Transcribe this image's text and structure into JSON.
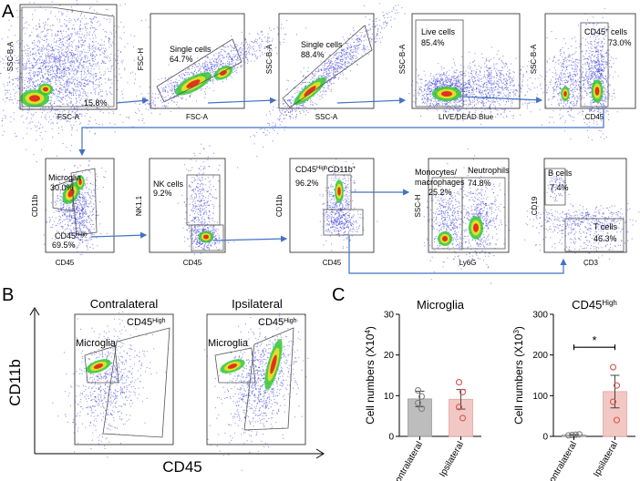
{
  "figure": {
    "panel_a": "A",
    "panel_b": "B",
    "panel_c": "C"
  },
  "colors": {
    "arrow": "#4472c4",
    "gate": "#555555",
    "contra_bar": "#bdbdbd",
    "ipsi_bar": "#f2c8c4",
    "contra_point": "#808080",
    "ipsi_point": "#d9534f",
    "density_low": "#3a3ad8",
    "density_mid": "#32c832",
    "density_high": "#e02020"
  },
  "gating_plots": [
    {
      "id": "fsc-ssc",
      "x_label": "FSC-A",
      "y_label": "SSC-B-A",
      "gates": [
        {
          "name": "",
          "pct": "15.8%"
        }
      ]
    },
    {
      "id": "singlets1",
      "x_label": "FSC-A",
      "y_label": "FSC-H",
      "gates": [
        {
          "name": "Single cells",
          "pct": "64.7%"
        }
      ]
    },
    {
      "id": "singlets2",
      "x_label": "SSC-A",
      "y_label": "SSC-B-A",
      "gates": [
        {
          "name": "Single cells",
          "pct": "88.4%"
        }
      ]
    },
    {
      "id": "live",
      "x_label": "LIVE/DEAD Blue",
      "y_label": "SSC-B-A",
      "gates": [
        {
          "name": "Live cells",
          "pct": "85.4%"
        }
      ]
    },
    {
      "id": "cd45",
      "x_label": "CD45",
      "y_label": "SSC-B-A",
      "gates": [
        {
          "name": "CD45",
          "sup": "+",
          "suffix": " cells",
          "pct": "73.0%"
        }
      ]
    },
    {
      "id": "microglia",
      "x_label": "CD45",
      "y_label": "CD11b",
      "gates": [
        {
          "name": "Microglia",
          "pct": "30.0%"
        },
        {
          "name": "CD45",
          "sup": "High",
          "pct": "69.5%"
        }
      ]
    },
    {
      "id": "nk",
      "x_label": "CD45",
      "y_label": "NK1.1",
      "gates": [
        {
          "name": "NK cells",
          "pct": "9.2%"
        }
      ]
    },
    {
      "id": "cd11b",
      "x_label": "CD45",
      "y_label": "CD11b",
      "gates": [
        {
          "name": "CD45",
          "sup": "High",
          "mid": "CD11b",
          "sup2": "+",
          "pct": "96.2%"
        }
      ]
    },
    {
      "id": "ly6g",
      "x_label": "Ly6G",
      "y_label": "SSC-H",
      "gates": [
        {
          "name": "Monocytes/",
          "name2": "macrophages",
          "pct": "25.2%"
        },
        {
          "name": "Neutrophils",
          "pct": "74.8%"
        }
      ]
    },
    {
      "id": "cd3",
      "x_label": "CD3",
      "y_label": "CD19",
      "gates": [
        {
          "name": "B cells",
          "pct": "7.4%"
        },
        {
          "name": "T cells",
          "pct": "46.3%"
        }
      ]
    }
  ],
  "panel_b": {
    "y_label": "CD11b",
    "x_label": "CD45",
    "plots": [
      {
        "title": "Contralateral",
        "gate1": "Microglia",
        "gate2": "CD45",
        "gate2_sup": "High"
      },
      {
        "title": "Ipsilateral",
        "gate1": "Microglia",
        "gate2": "CD45",
        "gate2_sup": "High"
      }
    ]
  },
  "chart_data": [
    {
      "type": "bar",
      "title": "Microglia",
      "ylabel": "Cell numbers (X10",
      "ylabel_exp": "4",
      "ylabel_close": ")",
      "categories": [
        "Contralateral",
        "Ipsilateral"
      ],
      "values": [
        9.2,
        9.1
      ],
      "errors": [
        1.9,
        2.4
      ],
      "points": [
        [
          11.3,
          9.8,
          8.2,
          6.8
        ],
        [
          13.3,
          10.9,
          7.2,
          4.5
        ]
      ],
      "ylim": [
        0,
        30
      ],
      "yticks": [
        0,
        10,
        20,
        30
      ],
      "significance": ""
    },
    {
      "type": "bar",
      "title": "CD45",
      "title_sup": "High",
      "ylabel": "Cell numbers (X10",
      "ylabel_exp": "3",
      "ylabel_close": ")",
      "categories": [
        "Contralateral",
        "Ipsilateral"
      ],
      "values": [
        3.5,
        110
      ],
      "errors": [
        1.0,
        40
      ],
      "points": [
        [
          2.5,
          3.2,
          4.0,
          5.0
        ],
        [
          170,
          125,
          85,
          40
        ]
      ],
      "ylim": [
        0,
        300
      ],
      "yticks": [
        0,
        100,
        200,
        300
      ],
      "significance": "*"
    }
  ]
}
